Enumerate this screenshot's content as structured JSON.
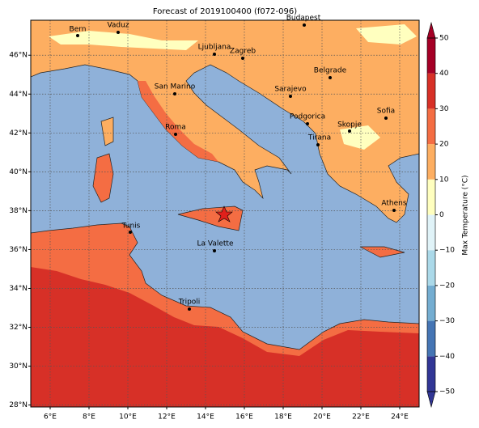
{
  "chart_data": {
    "type": "map",
    "title": "Forecast of 2019100400 (f072-096)",
    "xlim": [
      5,
      25
    ],
    "ylim": [
      27.9,
      47.8
    ],
    "xticks": [
      {
        "value": 6,
        "label": "6°E"
      },
      {
        "value": 8,
        "label": "8°E"
      },
      {
        "value": 10,
        "label": "10°E"
      },
      {
        "value": 12,
        "label": "12°E"
      },
      {
        "value": 14,
        "label": "14°E"
      },
      {
        "value": 16,
        "label": "16°E"
      },
      {
        "value": 18,
        "label": "18°E"
      },
      {
        "value": 20,
        "label": "20°E"
      },
      {
        "value": 22,
        "label": "22°E"
      },
      {
        "value": 24,
        "label": "24°E"
      }
    ],
    "yticks": [
      {
        "value": 28,
        "label": "28°N"
      },
      {
        "value": 30,
        "label": "30°N"
      },
      {
        "value": 32,
        "label": "32°N"
      },
      {
        "value": 34,
        "label": "34°N"
      },
      {
        "value": 36,
        "label": "36°N"
      },
      {
        "value": 38,
        "label": "38°N"
      },
      {
        "value": 40,
        "label": "40°N"
      },
      {
        "value": 42,
        "label": "42°N"
      },
      {
        "value": 44,
        "label": "44°N"
      },
      {
        "value": 46,
        "label": "46°N"
      }
    ],
    "grid": true,
    "cities": [
      "Bern",
      "Vaduz",
      "Budapest",
      "Ljubljana",
      "Zagreb",
      "Belgrade",
      "Sarajevo",
      "San Marino",
      "Sofia",
      "Podgorica",
      "Skopje",
      "Roma",
      "Tirana",
      "Athens",
      "Tunis",
      "La Valette",
      "Tripoli"
    ],
    "colorbar": {
      "label": "Max Temperature (°C)",
      "lim": [
        -50,
        50
      ],
      "ticks": [
        {
          "value": -50,
          "label": "−50"
        },
        {
          "value": -40,
          "label": "−40"
        },
        {
          "value": -30,
          "label": "−30"
        },
        {
          "value": -20,
          "label": "−20"
        },
        {
          "value": -10,
          "label": "−10"
        },
        0,
        10,
        20,
        30,
        40,
        50
      ],
      "colors": [
        "#313695",
        "#4575b4",
        "#74add1",
        "#abd9e9",
        "#e0f3f8",
        "#ffffbf",
        "#fdae61",
        "#f46d43",
        "#d73027",
        "#a50026"
      ]
    }
  }
}
